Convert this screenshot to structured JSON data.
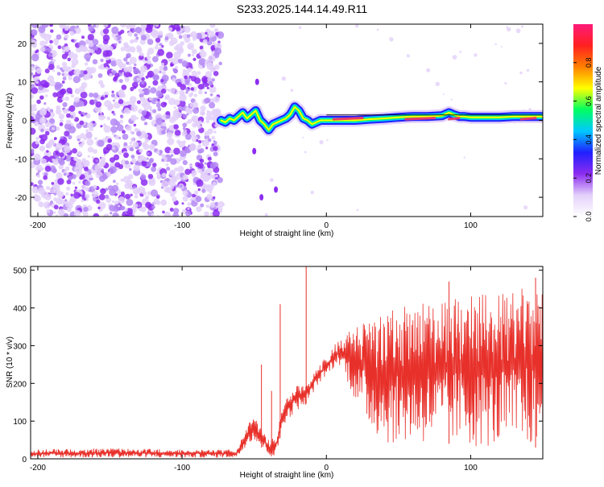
{
  "figure": {
    "title": "S233.2025.144.14.49.R11"
  },
  "colors": {
    "frame": "#000000",
    "snr_line": "#e8302a",
    "signal_core": "#e83a6a",
    "colormap": [
      "#ffffff",
      "#e3d0fa",
      "#8c2cf0",
      "#2020ff",
      "#00c8ff",
      "#00ff60",
      "#ffff00",
      "#ff8000",
      "#ff2020",
      "#ff1a7a"
    ]
  },
  "chart_data": [
    {
      "type": "heatmap",
      "title": "",
      "xlabel": "Height of straight line (km)",
      "ylabel": "Frequency (Hz)",
      "xlim": [
        -205,
        150
      ],
      "ylim": [
        -25,
        25
      ],
      "x_ticks": [
        -200,
        -100,
        0,
        100
      ],
      "y_ticks": [
        -20,
        -10,
        0,
        10,
        20
      ],
      "grid": false,
      "noise_region_x": [
        -205,
        -73
      ],
      "signal_ridge": {
        "x": [
          -73,
          -70,
          -67,
          -64,
          -61,
          -58,
          -55,
          -52,
          -49,
          -46,
          -43,
          -40,
          -37,
          -34,
          -31,
          -28,
          -25,
          -22,
          -19,
          -16,
          -13,
          -10,
          -7,
          -4,
          -1,
          2,
          10,
          20,
          30,
          40,
          50,
          60,
          70,
          80,
          85,
          88,
          92,
          95,
          100,
          110,
          120,
          130,
          140,
          150
        ],
        "y": [
          0,
          -0.5,
          0.5,
          0,
          1,
          2,
          0.5,
          1.5,
          2.5,
          0,
          -1,
          -2.5,
          -1,
          -0.5,
          0,
          0.5,
          1.5,
          3.5,
          2.5,
          0.5,
          0,
          -1,
          -0.5,
          0,
          0,
          0,
          0,
          0,
          0.3,
          0.5,
          0.8,
          1,
          1,
          1.2,
          2,
          1.5,
          1,
          1,
          0.8,
          0.8,
          0.8,
          1,
          1,
          1
        ]
      },
      "colorbar": {
        "label": "Normalized spectral amplitude",
        "range": [
          0,
          1
        ],
        "ticks": [
          0.0,
          0.2,
          0.4,
          0.6,
          0.8
        ],
        "tick_labels": [
          "0.0",
          "0.2",
          "0.4",
          "0.6",
          "0.8"
        ]
      }
    },
    {
      "type": "line",
      "title": "",
      "xlabel": "Height of straight line (km)",
      "ylabel": "SNR (10 * v/v)",
      "xlim": [
        -205,
        150
      ],
      "ylim": [
        0,
        510
      ],
      "x_ticks": [
        -200,
        -100,
        0,
        100
      ],
      "y_ticks": [
        0,
        100,
        200,
        300,
        400,
        500
      ],
      "grid": false,
      "series": [
        {
          "envelope_x": [
            -205,
            -150,
            -100,
            -62,
            -58,
            -55,
            -50,
            -45,
            -40,
            -35,
            -30,
            -25,
            -20,
            -15,
            -10,
            -5,
            0,
            5,
            10,
            15,
            20,
            25,
            30,
            40,
            50,
            60,
            70,
            80,
            90,
            100,
            110,
            120,
            130,
            140,
            150
          ],
          "envelope_low": [
            3,
            3,
            3,
            3,
            20,
            40,
            50,
            30,
            10,
            2,
            90,
            110,
            130,
            140,
            170,
            200,
            220,
            240,
            250,
            200,
            150,
            120,
            80,
            40,
            40,
            40,
            40,
            40,
            40,
            30,
            30,
            30,
            30,
            30,
            30
          ],
          "envelope_high": [
            25,
            28,
            25,
            25,
            60,
            90,
            110,
            80,
            50,
            60,
            140,
            180,
            200,
            190,
            220,
            250,
            270,
            300,
            320,
            340,
            350,
            360,
            380,
            390,
            400,
            410,
            420,
            420,
            430,
            440,
            440,
            440,
            450,
            460,
            470
          ],
          "spikes": [
            {
              "x": -45,
              "y": 250
            },
            {
              "x": -32,
              "y": 410
            },
            {
              "x": -14,
              "y": 510
            },
            {
              "x": -38,
              "y": 180
            },
            {
              "x": 85,
              "y": 470
            },
            {
              "x": 145,
              "y": 480
            }
          ]
        }
      ]
    }
  ]
}
